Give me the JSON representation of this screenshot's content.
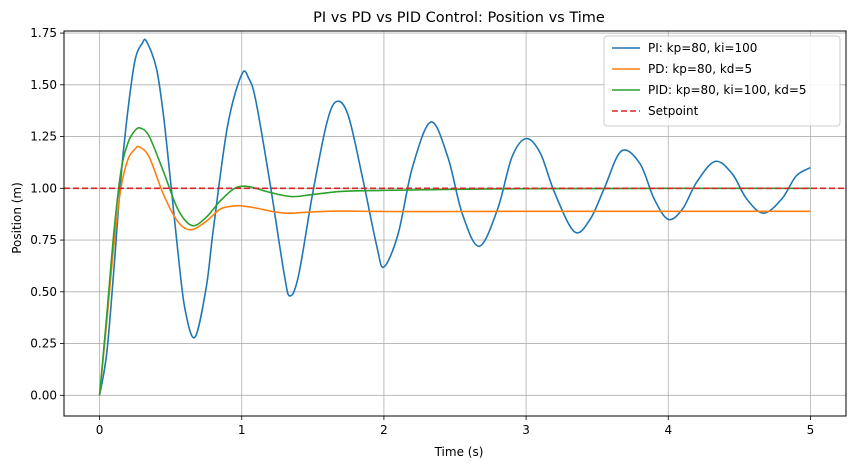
{
  "chart_data": {
    "type": "line",
    "title": "PI vs PD vs PID Control: Position vs Time",
    "xlabel": "Time (s)",
    "ylabel": "Position (m)",
    "xlim": [
      -0.25,
      5.25
    ],
    "ylim": [
      -0.1,
      1.76
    ],
    "xticks": [
      0,
      1,
      2,
      3,
      4,
      5
    ],
    "xtick_labels": [
      "0",
      "1",
      "2",
      "3",
      "4",
      "5"
    ],
    "yticks": [
      0.0,
      0.25,
      0.5,
      0.75,
      1.0,
      1.25,
      1.5,
      1.75
    ],
    "ytick_labels": [
      "0.00",
      "0.25",
      "0.50",
      "0.75",
      "1.00",
      "1.25",
      "1.50",
      "1.75"
    ],
    "grid": true,
    "legend_position": "top-right",
    "series": [
      {
        "name": "PI: kp=80, ki=100",
        "color": "#1f77b4",
        "style": "solid",
        "x": [
          0,
          0.05,
          0.1,
          0.15,
          0.2,
          0.25,
          0.3,
          0.33,
          0.4,
          0.45,
          0.5,
          0.55,
          0.6,
          0.67,
          0.75,
          0.8,
          0.9,
          1.0,
          1.05,
          1.1,
          1.2,
          1.3,
          1.34,
          1.4,
          1.5,
          1.6,
          1.67,
          1.75,
          1.85,
          1.95,
          2.0,
          2.1,
          2.2,
          2.33,
          2.45,
          2.55,
          2.67,
          2.8,
          2.9,
          3.0,
          3.1,
          3.2,
          3.34,
          3.45,
          3.55,
          3.67,
          3.8,
          3.9,
          4.0,
          4.1,
          4.2,
          4.33,
          4.45,
          4.55,
          4.67,
          4.8,
          4.9,
          5.0
        ],
        "y": [
          0,
          0.2,
          0.6,
          1.05,
          1.38,
          1.62,
          1.7,
          1.71,
          1.58,
          1.35,
          1.03,
          0.7,
          0.42,
          0.28,
          0.52,
          0.8,
          1.3,
          1.55,
          1.53,
          1.42,
          1.02,
          0.58,
          0.48,
          0.58,
          0.98,
          1.32,
          1.42,
          1.35,
          1.05,
          0.72,
          0.62,
          0.78,
          1.1,
          1.32,
          1.15,
          0.88,
          0.72,
          0.9,
          1.15,
          1.24,
          1.17,
          0.98,
          0.79,
          0.85,
          1.0,
          1.18,
          1.12,
          0.95,
          0.85,
          0.9,
          1.03,
          1.13,
          1.07,
          0.95,
          0.88,
          0.95,
          1.06,
          1.1
        ]
      },
      {
        "name": "PD: kp=80, kd=5",
        "color": "#ff7f0e",
        "style": "solid",
        "x": [
          0,
          0.05,
          0.1,
          0.15,
          0.2,
          0.25,
          0.28,
          0.35,
          0.45,
          0.55,
          0.64,
          0.75,
          0.85,
          0.95,
          1.0,
          1.1,
          1.2,
          1.32,
          1.5,
          1.7,
          2.0,
          2.5,
          3.0,
          3.5,
          4.0,
          4.5,
          5.0
        ],
        "y": [
          0,
          0.35,
          0.72,
          1.0,
          1.14,
          1.19,
          1.2,
          1.15,
          0.97,
          0.84,
          0.8,
          0.84,
          0.9,
          0.915,
          0.915,
          0.905,
          0.89,
          0.88,
          0.886,
          0.89,
          0.888,
          0.888,
          0.889,
          0.889,
          0.889,
          0.889,
          0.889
        ]
      },
      {
        "name": "PID: kp=80, ki=100, kd=5",
        "color": "#2ca02c",
        "style": "solid",
        "x": [
          0,
          0.05,
          0.1,
          0.15,
          0.2,
          0.25,
          0.29,
          0.35,
          0.45,
          0.55,
          0.65,
          0.75,
          0.85,
          0.95,
          1.03,
          1.1,
          1.2,
          1.35,
          1.5,
          1.7,
          2.0,
          2.5,
          3.0,
          3.5,
          4.0,
          4.5,
          5.0
        ],
        "y": [
          0,
          0.38,
          0.78,
          1.08,
          1.22,
          1.28,
          1.29,
          1.25,
          1.08,
          0.9,
          0.82,
          0.86,
          0.94,
          1.0,
          1.01,
          1.0,
          0.98,
          0.96,
          0.97,
          0.985,
          0.99,
          0.995,
          0.998,
          0.999,
          1.0,
          1.0,
          1.0
        ]
      },
      {
        "name": "Setpoint",
        "color": "#d62728",
        "style": "dashed",
        "x": [
          -0.25,
          5.25
        ],
        "y": [
          1.0,
          1.0
        ]
      }
    ]
  }
}
